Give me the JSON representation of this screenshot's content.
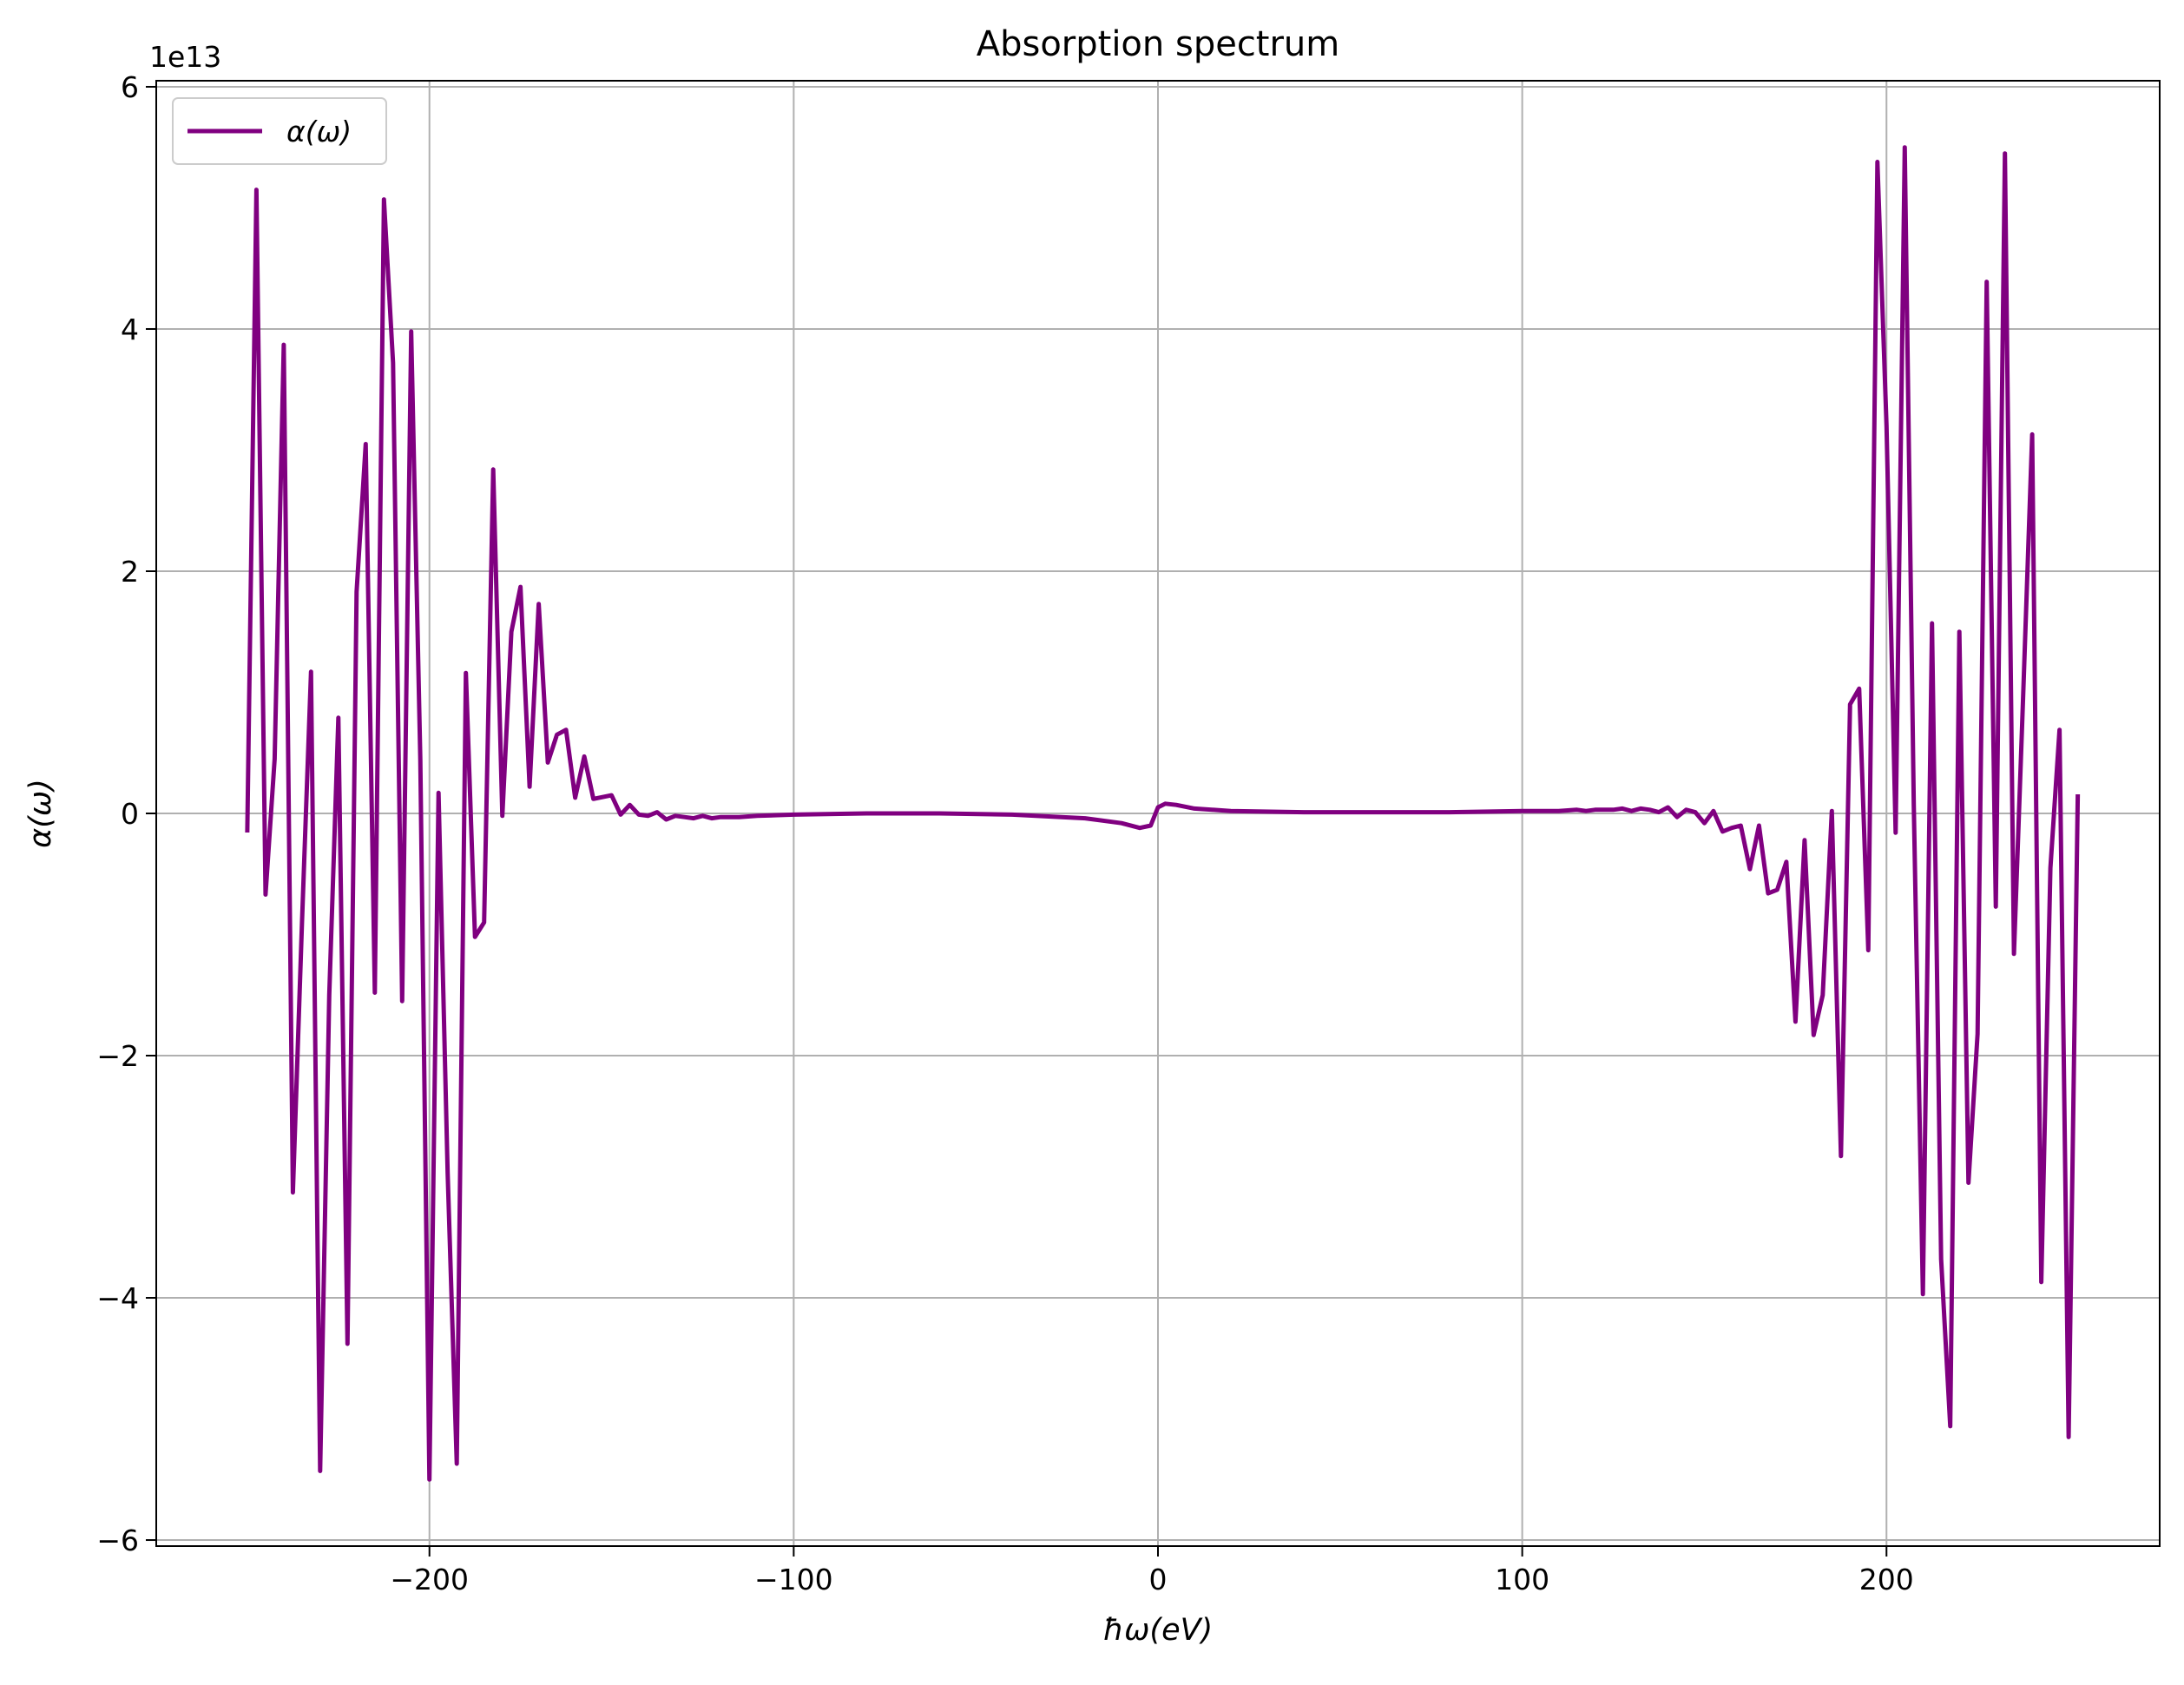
{
  "chart_data": {
    "type": "line",
    "title": "Absorption spectrum",
    "xlabel": "ħω(eV)",
    "ylabel": "α(ω)",
    "y_offset_label": "1e13",
    "y_scale": 10000000000000.0,
    "xlim": [
      -275,
      275
    ],
    "ylim": [
      -6.05,
      6.05
    ],
    "x_ticks": [
      -200,
      -100,
      0,
      100,
      200
    ],
    "x_tick_labels": [
      "−200",
      "−100",
      "0",
      "100",
      "200"
    ],
    "y_ticks": [
      -6,
      -4,
      -2,
      0,
      2,
      4,
      6
    ],
    "y_tick_labels": [
      "−6",
      "−4",
      "−2",
      "0",
      "2",
      "4",
      "6"
    ],
    "grid": true,
    "legend_position": "top-left",
    "colors": {
      "series": "#800080",
      "grid": "#b0b0b0",
      "axes": "#000000"
    },
    "series": [
      {
        "name": "α(ω)",
        "points": [
          [
            -250,
            -0.14
          ],
          [
            -247.5,
            5.15
          ],
          [
            -245,
            -0.67
          ],
          [
            -242.5,
            0.45
          ],
          [
            -240,
            3.87
          ],
          [
            -237.5,
            -3.13
          ],
          [
            -235,
            -0.9
          ],
          [
            -232.5,
            1.17
          ],
          [
            -230,
            -5.43
          ],
          [
            -227.5,
            -1.5
          ],
          [
            -225,
            0.79
          ],
          [
            -222.5,
            -4.38
          ],
          [
            -220,
            1.83
          ],
          [
            -217.5,
            3.05
          ],
          [
            -215,
            -1.48
          ],
          [
            -212.5,
            5.07
          ],
          [
            -210,
            3.72
          ],
          [
            -207.5,
            -1.55
          ],
          [
            -205,
            3.98
          ],
          [
            -202.5,
            0.45
          ],
          [
            -200,
            -5.5
          ],
          [
            -197.5,
            0.17
          ],
          [
            -195,
            -2.97
          ],
          [
            -192.5,
            -5.37
          ],
          [
            -190,
            1.16
          ],
          [
            -187.5,
            -1.02
          ],
          [
            -185,
            -0.9
          ],
          [
            -182.5,
            2.84
          ],
          [
            -180,
            -0.02
          ],
          [
            -177.5,
            1.5
          ],
          [
            -175,
            1.87
          ],
          [
            -172.5,
            0.22
          ],
          [
            -170,
            1.73
          ],
          [
            -167.5,
            0.42
          ],
          [
            -165,
            0.65
          ],
          [
            -162.5,
            0.69
          ],
          [
            -160,
            0.13
          ],
          [
            -157.5,
            0.47
          ],
          [
            -155,
            0.12
          ],
          [
            -150,
            0.15
          ],
          [
            -147.5,
            -0.01
          ],
          [
            -145,
            0.07
          ],
          [
            -142.5,
            -0.01
          ],
          [
            -140,
            -0.02
          ],
          [
            -137.5,
            0.01
          ],
          [
            -135,
            -0.05
          ],
          [
            -132.5,
            -0.02
          ],
          [
            -130,
            -0.03
          ],
          [
            -127.5,
            -0.04
          ],
          [
            -125,
            -0.02
          ],
          [
            -122.5,
            -0.04
          ],
          [
            -120,
            -0.03
          ],
          [
            -115,
            -0.03
          ],
          [
            -110,
            -0.02
          ],
          [
            -100,
            -0.01
          ],
          [
            -80,
            0.0
          ],
          [
            -60,
            0.0
          ],
          [
            -40,
            -0.01
          ],
          [
            -20,
            -0.04
          ],
          [
            -10,
            -0.08
          ],
          [
            -5,
            -0.12
          ],
          [
            -2,
            -0.1
          ],
          [
            0,
            0.05
          ],
          [
            2,
            0.08
          ],
          [
            5,
            0.07
          ],
          [
            10,
            0.04
          ],
          [
            20,
            0.02
          ],
          [
            40,
            0.01
          ],
          [
            60,
            0.01
          ],
          [
            80,
            0.01
          ],
          [
            100,
            0.02
          ],
          [
            110,
            0.02
          ],
          [
            115,
            0.03
          ],
          [
            117.5,
            0.02
          ],
          [
            120,
            0.03
          ],
          [
            122.5,
            0.03
          ],
          [
            125,
            0.03
          ],
          [
            127.5,
            0.04
          ],
          [
            130,
            0.02
          ],
          [
            132.5,
            0.04
          ],
          [
            135,
            0.03
          ],
          [
            137.5,
            0.01
          ],
          [
            140,
            0.05
          ],
          [
            142.5,
            -0.03
          ],
          [
            145,
            0.03
          ],
          [
            147.5,
            0.01
          ],
          [
            150,
            -0.08
          ],
          [
            152.5,
            0.02
          ],
          [
            155,
            -0.15
          ],
          [
            157.5,
            -0.12
          ],
          [
            160,
            -0.1
          ],
          [
            162.5,
            -0.46
          ],
          [
            165,
            -0.1
          ],
          [
            167.5,
            -0.66
          ],
          [
            170,
            -0.63
          ],
          [
            172.5,
            -0.4
          ],
          [
            175,
            -1.72
          ],
          [
            177.5,
            -0.22
          ],
          [
            180,
            -1.83
          ],
          [
            182.5,
            -1.5
          ],
          [
            185,
            0.02
          ],
          [
            187.5,
            -2.83
          ],
          [
            190,
            0.9
          ],
          [
            192.5,
            1.03
          ],
          [
            195,
            -1.13
          ],
          [
            197.5,
            5.38
          ],
          [
            200,
            3.2
          ],
          [
            202.5,
            -0.16
          ],
          [
            205,
            5.5
          ],
          [
            207.5,
            0.07
          ],
          [
            210,
            -3.97
          ],
          [
            212.5,
            1.57
          ],
          [
            215,
            -3.68
          ],
          [
            217.5,
            -5.06
          ],
          [
            220,
            1.5
          ],
          [
            222.5,
            -3.05
          ],
          [
            225,
            -1.82
          ],
          [
            227.5,
            4.39
          ],
          [
            230,
            -0.77
          ],
          [
            232.5,
            5.45
          ],
          [
            235,
            -1.16
          ],
          [
            237.5,
            0.95
          ],
          [
            240,
            3.13
          ],
          [
            242.5,
            -3.87
          ],
          [
            245,
            -0.45
          ],
          [
            247.5,
            0.69
          ],
          [
            250,
            -5.15
          ],
          [
            252.5,
            0.14
          ]
        ]
      }
    ]
  }
}
